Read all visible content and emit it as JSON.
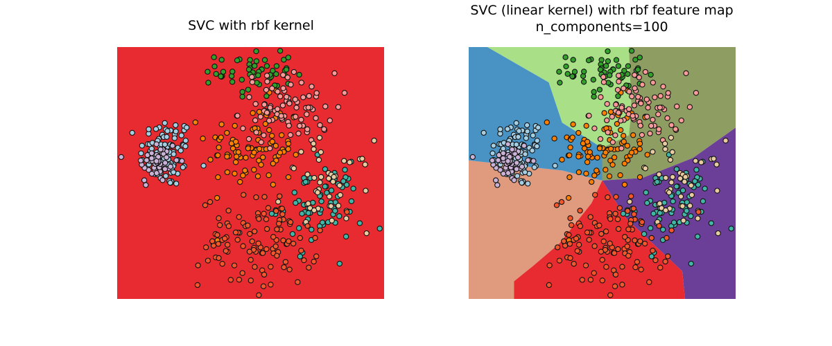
{
  "chart_data": [
    {
      "type": "scatter",
      "title": "SVC with rbf kernel",
      "subtitle": "",
      "xlabel": "",
      "ylabel": "",
      "axes_visible": false,
      "grid": false,
      "legend": "none",
      "xlim": [
        -1,
        1
      ],
      "ylim": [
        -1,
        1
      ],
      "decision_regions": [
        {
          "class": "background",
          "color": "#e72b30",
          "polygon": [
            [
              -1,
              -1
            ],
            [
              1,
              -1
            ],
            [
              1,
              1
            ],
            [
              -1,
              1
            ]
          ]
        }
      ],
      "marker_edge_color": "#111111",
      "clusters": [
        {
          "name": "c_lightblue",
          "color": "#a6cee3",
          "center": [
            -0.63,
            0.16
          ],
          "spread": [
            0.1,
            0.14
          ],
          "n": 90
        },
        {
          "name": "c_purple_light",
          "color": "#cab2d6",
          "center": [
            -0.7,
            0.08
          ],
          "spread": [
            0.08,
            0.1
          ],
          "n": 50
        },
        {
          "name": "c_orange",
          "color": "#ff7f00",
          "center": [
            0.03,
            0.22
          ],
          "spread": [
            0.18,
            0.18
          ],
          "n": 95
        },
        {
          "name": "c_green",
          "color": "#33a02c",
          "center": [
            0.03,
            0.8
          ],
          "spread": [
            0.14,
            0.1
          ],
          "n": 55
        },
        {
          "name": "c_pink",
          "color": "#fb9a99",
          "center": [
            0.28,
            0.52
          ],
          "spread": [
            0.18,
            0.14
          ],
          "n": 80
        },
        {
          "name": "c_teal",
          "color": "#41b6a6",
          "center": [
            0.52,
            -0.26
          ],
          "spread": [
            0.16,
            0.16
          ],
          "n": 70
        },
        {
          "name": "c_tan",
          "color": "#e8cba0",
          "center": [
            0.58,
            -0.1
          ],
          "spread": [
            0.16,
            0.18
          ],
          "n": 45
        },
        {
          "name": "c_red_orange",
          "color": "#f4562c",
          "center": [
            0.06,
            -0.55
          ],
          "spread": [
            0.22,
            0.18
          ],
          "n": 110
        }
      ]
    },
    {
      "type": "scatter",
      "title": "SVC (linear kernel) with rbf feature map",
      "subtitle": "n_components=100",
      "xlabel": "",
      "ylabel": "",
      "axes_visible": false,
      "grid": false,
      "legend": "none",
      "xlim": [
        -1,
        1
      ],
      "ylim": [
        -1,
        1
      ],
      "decision_regions": [
        {
          "class": "salmon",
          "color": "#e09a7e",
          "polygon": [
            [
              -1,
              -1
            ],
            [
              -0.66,
              -1
            ],
            [
              -0.66,
              -0.86
            ],
            [
              -0.52,
              -0.74
            ],
            [
              -0.32,
              -0.56
            ],
            [
              -0.08,
              -0.24
            ],
            [
              0.0,
              -0.06
            ],
            [
              -0.3,
              0.02
            ],
            [
              -1,
              0.1
            ]
          ]
        },
        {
          "class": "blue",
          "color": "#4893c3",
          "polygon": [
            [
              -1,
              0.1
            ],
            [
              -0.3,
              0.02
            ],
            [
              0.0,
              -0.06
            ],
            [
              0.0,
              0.2
            ],
            [
              -0.3,
              0.4
            ],
            [
              -0.4,
              0.72
            ],
            [
              -0.86,
              1
            ],
            [
              -1,
              1
            ]
          ]
        },
        {
          "class": "lightgreen",
          "color": "#a9df86",
          "polygon": [
            [
              -0.86,
              1
            ],
            [
              -0.4,
              0.72
            ],
            [
              -0.3,
              0.4
            ],
            [
              0.0,
              0.2
            ],
            [
              0.2,
              0.3
            ],
            [
              0.22,
              0.5
            ],
            [
              0.2,
              1
            ]
          ]
        },
        {
          "class": "olive",
          "color": "#8e9d62",
          "polygon": [
            [
              0.2,
              1
            ],
            [
              0.22,
              0.5
            ],
            [
              0.2,
              0.3
            ],
            [
              0.0,
              0.2
            ],
            [
              0.0,
              -0.06
            ],
            [
              0.3,
              -0.04
            ],
            [
              0.68,
              0.12
            ],
            [
              1,
              0.36
            ],
            [
              1,
              1
            ]
          ]
        },
        {
          "class": "purple",
          "color": "#6b3f98",
          "polygon": [
            [
              0.0,
              -0.06
            ],
            [
              0.3,
              -0.04
            ],
            [
              0.68,
              0.12
            ],
            [
              1,
              0.36
            ],
            [
              1,
              -1
            ],
            [
              0.62,
              -1
            ],
            [
              0.6,
              -0.78
            ],
            [
              0.4,
              -0.58
            ],
            [
              0.18,
              -0.36
            ]
          ]
        },
        {
          "class": "red",
          "color": "#e72b30",
          "polygon": [
            [
              -0.66,
              -1
            ],
            [
              0.62,
              -1
            ],
            [
              0.6,
              -0.78
            ],
            [
              0.4,
              -0.58
            ],
            [
              0.18,
              -0.36
            ],
            [
              0.0,
              -0.06
            ],
            [
              -0.08,
              -0.24
            ],
            [
              -0.32,
              -0.56
            ],
            [
              -0.52,
              -0.74
            ],
            [
              -0.66,
              -0.86
            ]
          ]
        }
      ],
      "marker_edge_color": "#111111",
      "clusters": [
        {
          "name": "c_lightblue",
          "color": "#a6cee3",
          "center": [
            -0.63,
            0.16
          ],
          "spread": [
            0.1,
            0.14
          ],
          "n": 90
        },
        {
          "name": "c_purple_light",
          "color": "#cab2d6",
          "center": [
            -0.7,
            0.08
          ],
          "spread": [
            0.08,
            0.1
          ],
          "n": 50
        },
        {
          "name": "c_orange",
          "color": "#ff7f00",
          "center": [
            0.03,
            0.22
          ],
          "spread": [
            0.18,
            0.18
          ],
          "n": 95
        },
        {
          "name": "c_green",
          "color": "#33a02c",
          "center": [
            0.03,
            0.8
          ],
          "spread": [
            0.14,
            0.1
          ],
          "n": 55
        },
        {
          "name": "c_pink",
          "color": "#fb9a99",
          "center": [
            0.28,
            0.52
          ],
          "spread": [
            0.18,
            0.14
          ],
          "n": 80
        },
        {
          "name": "c_teal",
          "color": "#41b6a6",
          "center": [
            0.52,
            -0.26
          ],
          "spread": [
            0.16,
            0.16
          ],
          "n": 70
        },
        {
          "name": "c_tan",
          "color": "#e8cba0",
          "center": [
            0.58,
            -0.1
          ],
          "spread": [
            0.16,
            0.18
          ],
          "n": 45
        },
        {
          "name": "c_red_orange",
          "color": "#f4562c",
          "center": [
            0.06,
            -0.55
          ],
          "spread": [
            0.22,
            0.18
          ],
          "n": 110
        }
      ]
    }
  ]
}
